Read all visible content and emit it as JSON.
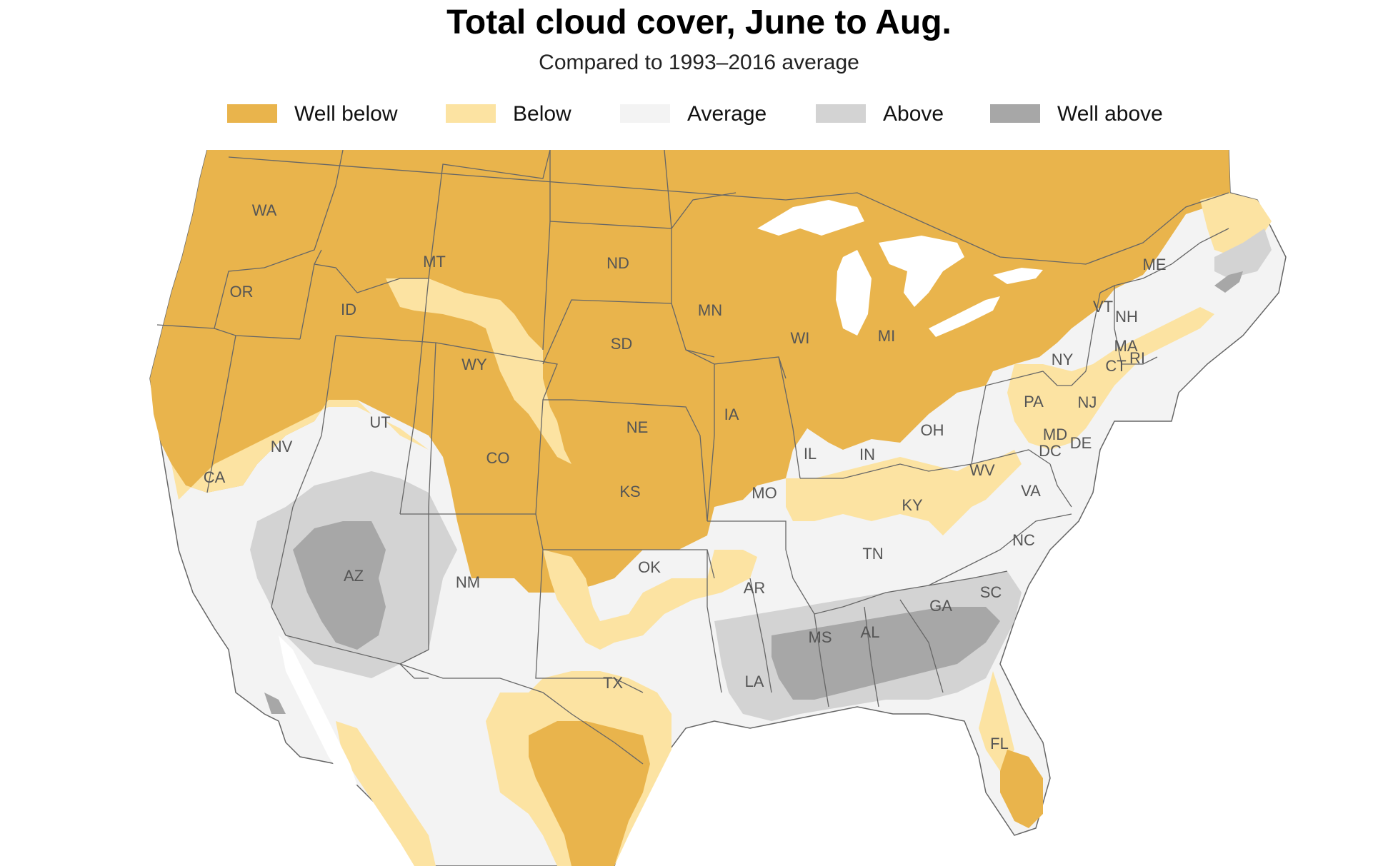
{
  "title": "Total cloud cover, June to Aug.",
  "subtitle": "Compared to 1993–2016 average",
  "legend": [
    {
      "label": "Well below",
      "color": "#E9B44C"
    },
    {
      "label": "Below",
      "color": "#FCE3A2"
    },
    {
      "label": "Average",
      "color": "#F3F3F3"
    },
    {
      "label": "Above",
      "color": "#D3D3D3"
    },
    {
      "label": "Well above",
      "color": "#A7A7A7"
    }
  ],
  "map": {
    "land_outline_color": "#666666",
    "water_color": "#FFFFFF",
    "state_labels": [
      "WA",
      "OR",
      "CA",
      "ID",
      "NV",
      "UT",
      "AZ",
      "MT",
      "WY",
      "CO",
      "NM",
      "ND",
      "SD",
      "NE",
      "KS",
      "OK",
      "TX",
      "MN",
      "IA",
      "MO",
      "AR",
      "LA",
      "WI",
      "IL",
      "MS",
      "MI",
      "IN",
      "KY",
      "TN",
      "AL",
      "OH",
      "GA",
      "FL",
      "WV",
      "VA",
      "NC",
      "SC",
      "PA",
      "NY",
      "NJ",
      "MD",
      "DE",
      "DC",
      "VT",
      "NH",
      "MA",
      "CT",
      "RI",
      "ME"
    ]
  }
}
